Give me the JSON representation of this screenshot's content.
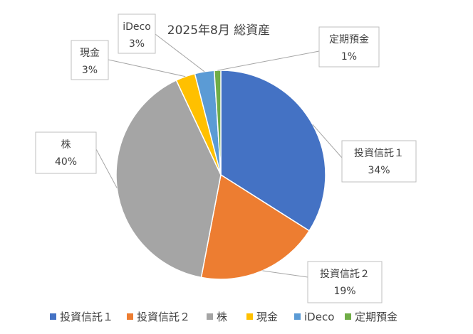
{
  "chart_data": {
    "type": "pie",
    "title": "2025年8月 総資産",
    "categories": [
      "投資信託１",
      "投資信託２",
      "株",
      "現金",
      "iDeco",
      "定期預金"
    ],
    "values": [
      34,
      19,
      40,
      3,
      3,
      1
    ],
    "value_labels": [
      "34%",
      "19%",
      "40%",
      "3%",
      "3%",
      "1%"
    ],
    "colors": [
      "#4472C4",
      "#ED7D31",
      "#A5A5A5",
      "#FFC000",
      "#5B9BD5",
      "#70AD47"
    ],
    "legend": "bottom",
    "data_labels": "callout-outside"
  }
}
